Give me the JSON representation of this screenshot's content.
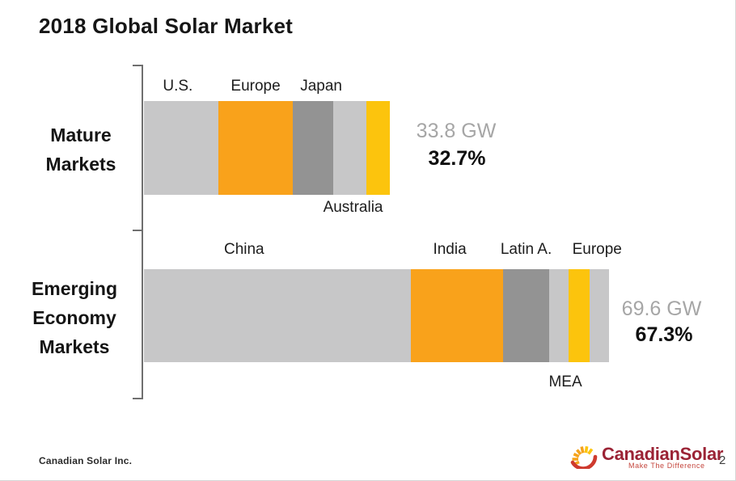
{
  "title": "2018 Global Solar Market",
  "chart_data": {
    "type": "bar",
    "subtype": "stacked-horizontal",
    "unit": "GW",
    "grid": false,
    "legend": "none",
    "palette": {
      "light_gray": "#C7C7C8",
      "orange": "#F9A21B",
      "dark_gray": "#939393",
      "yellow": "#FCC40D"
    },
    "value_label_colors": {
      "gw": "#A6A6A6",
      "percent": "#111111"
    },
    "groups": [
      {
        "id": "mature",
        "label": "Mature Markets",
        "label_lines": [
          "Mature",
          "Markets"
        ],
        "total_gw": 33.8,
        "total_label": "33.8 GW",
        "share_pct": 32.7,
        "share_label": "32.7%",
        "segments": [
          {
            "name": "U.S.",
            "gw": 10.2,
            "color": "light_gray",
            "label_pos": "above",
            "label_dx": -4
          },
          {
            "name": "Europe",
            "gw": 10.3,
            "color": "orange",
            "label_pos": "above",
            "label_dx": 0
          },
          {
            "name": "Japan",
            "gw": 5.5,
            "color": "dark_gray",
            "label_pos": "above",
            "label_dx": 10
          },
          {
            "name": "Australia",
            "gw": 4.6,
            "color": "light_gray",
            "label_pos": "below",
            "label_dx": 4
          },
          {
            "name": "",
            "gw": 3.2,
            "color": "yellow",
            "label_pos": "none",
            "label_dx": 0
          }
        ]
      },
      {
        "id": "emerging",
        "label": "Emerging Economy Markets",
        "label_lines": [
          "Emerging",
          "Economy",
          "Markets"
        ],
        "total_gw": 69.6,
        "total_label": "69.6 GW",
        "share_pct": 67.3,
        "share_label": "67.3%",
        "segments": [
          {
            "name": "China",
            "gw": 39.9,
            "color": "light_gray",
            "label_pos": "above",
            "label_dx": -41
          },
          {
            "name": "India",
            "gw": 13.9,
            "color": "orange",
            "label_pos": "above",
            "label_dx": -9
          },
          {
            "name": "Latin A.",
            "gw": 6.8,
            "color": "dark_gray",
            "label_pos": "above",
            "label_dx": 0
          },
          {
            "name": "MEA",
            "gw": 3.0,
            "color": "light_gray",
            "label_pos": "below",
            "label_dx": 8
          },
          {
            "name": "Europe",
            "gw": 3.1,
            "color": "yellow",
            "label_pos": "above",
            "label_dx": 22
          },
          {
            "name": "",
            "gw": 2.9,
            "color": "light_gray",
            "label_pos": "none",
            "label_dx": 0
          }
        ]
      }
    ]
  },
  "footer": {
    "company": "Canadian Solar Inc.",
    "logo": {
      "name": "CanadianSolar",
      "tagline": "Make The Difference",
      "brand_color": "#9B2335",
      "tagline_color": "#C4453C",
      "sun_ray_color": "#F5A31B",
      "sun_crescent_color": "#CE3A2E"
    },
    "page_number": "2"
  }
}
